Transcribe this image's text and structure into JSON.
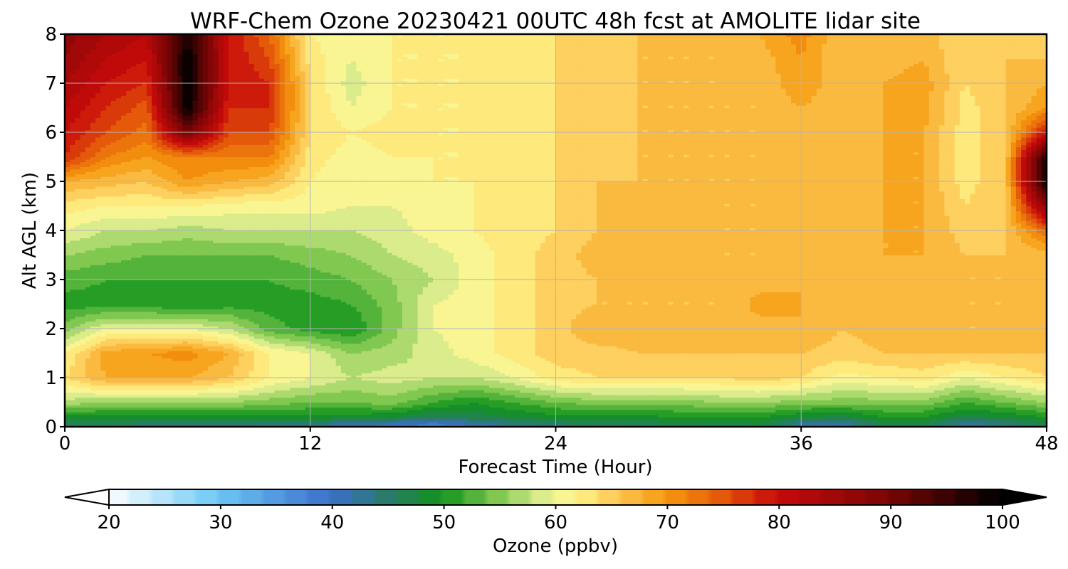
{
  "chart_data": {
    "type": "heatmap",
    "title": "WRF-Chem Ozone  20230421 00UTC 48h fcst at AMOLITE lidar site",
    "xlabel": "Forecast Time (Hour)",
    "ylabel": "Alt AGL (km)",
    "xlim": [
      0,
      48
    ],
    "ylim": [
      0,
      8
    ],
    "x_ticks": [
      0,
      12,
      24,
      36,
      48
    ],
    "x_tick_labels": [
      "0",
      "12",
      "24",
      "36",
      "48"
    ],
    "y_ticks": [
      0,
      1,
      2,
      3,
      4,
      5,
      6,
      7,
      8
    ],
    "y_tick_labels": [
      "0",
      "1",
      "2",
      "3",
      "4",
      "5",
      "6",
      "7",
      "8"
    ],
    "grid": true,
    "colorbar": {
      "label": "Ozone  (ppbv)",
      "min": 20,
      "max": 100,
      "extend": "both",
      "ticks": [
        20,
        30,
        40,
        50,
        60,
        70,
        80,
        90,
        100
      ],
      "tick_labels": [
        "20",
        "30",
        "40",
        "50",
        "60",
        "70",
        "80",
        "90",
        "100"
      ],
      "color_stops": [
        {
          "value": 20,
          "color": "#ffffff"
        },
        {
          "value": 30,
          "color": "#6cc8f5"
        },
        {
          "value": 40,
          "color": "#3c6fcc"
        },
        {
          "value": 45,
          "color": "#2a7a6e"
        },
        {
          "value": 50,
          "color": "#10931a"
        },
        {
          "value": 55,
          "color": "#80c850"
        },
        {
          "value": 60,
          "color": "#f0f59a"
        },
        {
          "value": 62,
          "color": "#fff58a"
        },
        {
          "value": 66,
          "color": "#fcc450"
        },
        {
          "value": 70,
          "color": "#f59a0f"
        },
        {
          "value": 75,
          "color": "#e55a0a"
        },
        {
          "value": 80,
          "color": "#c80a0a"
        },
        {
          "value": 90,
          "color": "#7a0505"
        },
        {
          "value": 100,
          "color": "#000000"
        }
      ]
    },
    "altitudes_km": [
      0,
      0.2,
      0.5,
      1,
      1.5,
      2,
      2.5,
      3,
      3.5,
      4,
      4.5,
      5,
      5.5,
      6,
      6.5,
      7,
      7.5,
      8
    ],
    "hours": [
      0,
      2,
      4,
      6,
      8,
      10,
      12,
      14,
      16,
      18,
      20,
      22,
      24,
      26,
      28,
      30,
      32,
      34,
      36,
      38,
      40,
      42,
      44,
      46,
      48
    ],
    "ozone_ppbv": [
      [
        45,
        45,
        44,
        44,
        44,
        43,
        42,
        40,
        38,
        36,
        40,
        43,
        44,
        45,
        45,
        46,
        46,
        47,
        41,
        40,
        46,
        46,
        41,
        43,
        46
      ],
      [
        49,
        49,
        49,
        49,
        49,
        49,
        49,
        49,
        48,
        46,
        47,
        48,
        49,
        49,
        49,
        50,
        50,
        50,
        48,
        47,
        50,
        50,
        47,
        48,
        50
      ],
      [
        57,
        56,
        56,
        56,
        56,
        55,
        54,
        54,
        55,
        52,
        50,
        52,
        54,
        55,
        55,
        55,
        56,
        56,
        55,
        55,
        55,
        55,
        52,
        54,
        56
      ],
      [
        64,
        68,
        68,
        68,
        66,
        62,
        60,
        58,
        59,
        58,
        58,
        60,
        63,
        64,
        64,
        64,
        64,
        65,
        64,
        61,
        62,
        63,
        60,
        62,
        64
      ],
      [
        62,
        69,
        70,
        71,
        68,
        62,
        60,
        56,
        57,
        59,
        61,
        63,
        65,
        65,
        66,
        66,
        66,
        66,
        66,
        65,
        66,
        66,
        66,
        66,
        66
      ],
      [
        55,
        60,
        60,
        60,
        58,
        53,
        51,
        50,
        55,
        60,
        61,
        63,
        65,
        68,
        67,
        67,
        66,
        67,
        68,
        66,
        67,
        67,
        66,
        66,
        67
      ],
      [
        51,
        51,
        51,
        50,
        51,
        51,
        51,
        52,
        55,
        60,
        61,
        63,
        65,
        66,
        66,
        66,
        66,
        69,
        68,
        66,
        67,
        67,
        66,
        66,
        67
      ],
      [
        53,
        52,
        52,
        52,
        52,
        52,
        53,
        54,
        56,
        58,
        61,
        63,
        65,
        66,
        66,
        66,
        66,
        67,
        68,
        66,
        67,
        68,
        66,
        66,
        67
      ],
      [
        56,
        55,
        54,
        54,
        54,
        54,
        55,
        56,
        58,
        59,
        61,
        63,
        65,
        67,
        67,
        67,
        66,
        66,
        67,
        66,
        68,
        68,
        66,
        66,
        67
      ],
      [
        60,
        58,
        58,
        57,
        58,
        58,
        58,
        58,
        59,
        61,
        62,
        63,
        64,
        66,
        68,
        67,
        66,
        66,
        67,
        66,
        68,
        68,
        65,
        66,
        74
      ],
      [
        63,
        62,
        62,
        62,
        61,
        61,
        61,
        60,
        60,
        61,
        62,
        63,
        64,
        66,
        68,
        67,
        66,
        66,
        67,
        66,
        68,
        68,
        64,
        66,
        88
      ],
      [
        68,
        67,
        66,
        70,
        68,
        67,
        62,
        60,
        61,
        62,
        62,
        63,
        64,
        66,
        66,
        66,
        66,
        66,
        67,
        66,
        68,
        68,
        63,
        66,
        100
      ],
      [
        78,
        72,
        70,
        72,
        72,
        72,
        63,
        61,
        62,
        62,
        62,
        63,
        64,
        65,
        66,
        66,
        66,
        66,
        67,
        66,
        68,
        68,
        63,
        66,
        98
      ],
      [
        80,
        76,
        73,
        90,
        76,
        76,
        64,
        62,
        63,
        62,
        62,
        63,
        64,
        65,
        66,
        66,
        66,
        66,
        67,
        66,
        68,
        68,
        63,
        66,
        80
      ],
      [
        82,
        78,
        75,
        100,
        78,
        78,
        64,
        60,
        62,
        62,
        62,
        63,
        64,
        65,
        66,
        66,
        66,
        66,
        68,
        66,
        68,
        69,
        63,
        66,
        70
      ],
      [
        84,
        80,
        78,
        100,
        80,
        78,
        64,
        59,
        62,
        62,
        62,
        63,
        64,
        65,
        66,
        66,
        66,
        66,
        70,
        66,
        68,
        69,
        64,
        66,
        68
      ],
      [
        86,
        82,
        80,
        100,
        80,
        76,
        63,
        60,
        62,
        62,
        62,
        63,
        64,
        65,
        66,
        66,
        66,
        67,
        70,
        66,
        67,
        68,
        64,
        66,
        66
      ],
      [
        87,
        84,
        82,
        98,
        80,
        74,
        62,
        61,
        62,
        62,
        62,
        63,
        64,
        65,
        66,
        66,
        66,
        68,
        71,
        66,
        67,
        67,
        64,
        65,
        65
      ]
    ]
  }
}
